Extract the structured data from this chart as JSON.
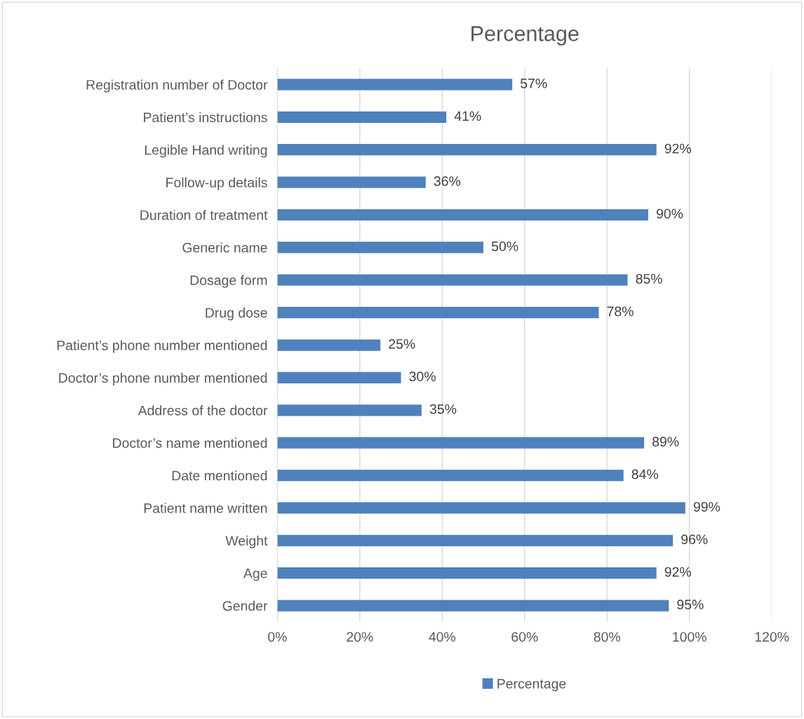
{
  "chart_data": {
    "type": "bar",
    "orientation": "horizontal",
    "title": "Percentage",
    "categories": [
      "Registration number of Doctor",
      "Patient’s instructions",
      "Legible Hand writing",
      "Follow-up details",
      "Duration of treatment",
      "Generic name",
      "Dosage form",
      "Drug dose",
      "Patient’s phone number mentioned",
      "Doctor’s phone number mentioned",
      "Address of the doctor",
      "Doctor’s name mentioned",
      "Date mentioned",
      "Patient name written",
      "Weight",
      "Age",
      "Gender"
    ],
    "series": [
      {
        "name": "Percentage",
        "color": "#4f81bd",
        "values": [
          57,
          41,
          92,
          36,
          90,
          50,
          85,
          78,
          25,
          30,
          35,
          89,
          84,
          99,
          96,
          92,
          95
        ],
        "value_labels": [
          "57%",
          "41%",
          "92%",
          "36%",
          "90%",
          "50%",
          "85%",
          "78%",
          "25%",
          "30%",
          "35%",
          "89%",
          "84%",
          "99%",
          "96%",
          "92%",
          "95%"
        ]
      }
    ],
    "xlim": [
      0,
      120
    ],
    "xticks": [
      {
        "value": 0,
        "label": "0%"
      },
      {
        "value": 20,
        "label": "20%"
      },
      {
        "value": 40,
        "label": "40%"
      },
      {
        "value": 60,
        "label": "60%"
      },
      {
        "value": 80,
        "label": "80%"
      },
      {
        "value": 100,
        "label": "100%"
      },
      {
        "value": 120,
        "label": "120%"
      }
    ],
    "grid": "x",
    "legend": "bottom"
  }
}
